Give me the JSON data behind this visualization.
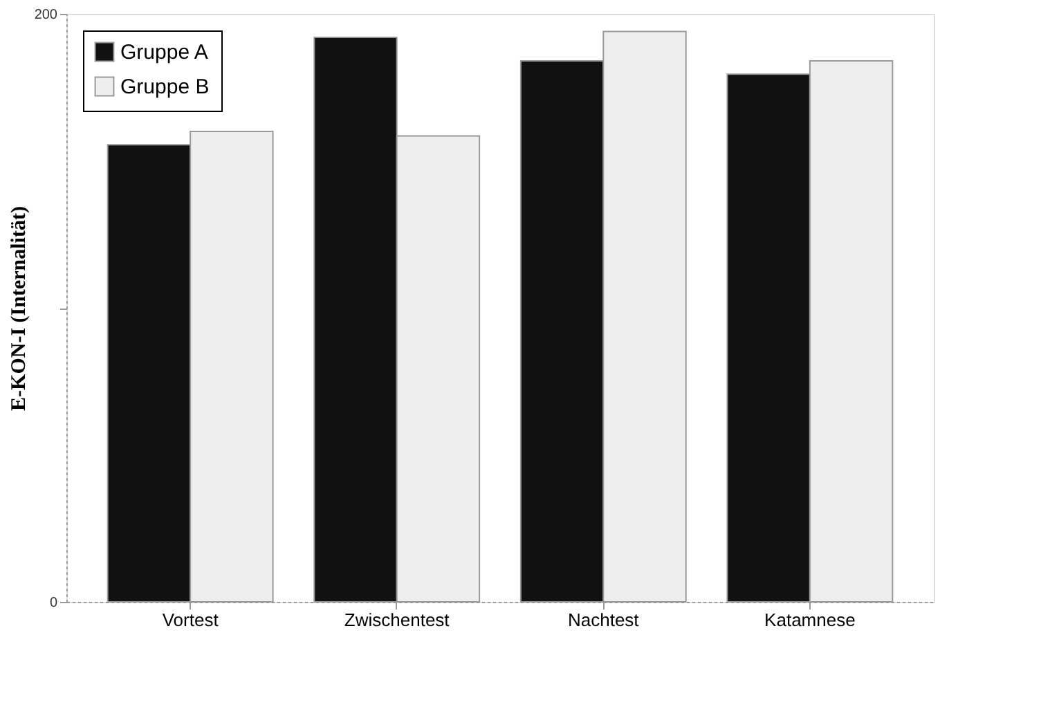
{
  "chart_data": {
    "type": "bar",
    "ylabel": "E-KON-I  (Internalität)",
    "categories": [
      "Vortest",
      "Zwischentest",
      "Nachtest",
      "Katamnese"
    ],
    "series": [
      {
        "name": "Gruppe A",
        "color": "#111111",
        "values": [
          155.5,
          192,
          184,
          179.5
        ]
      },
      {
        "name": "Gruppe B",
        "color": "#eeeeee",
        "values": [
          160,
          158.5,
          194,
          184
        ]
      }
    ],
    "ylim": [
      0,
      200
    ],
    "yticks": [
      0,
      {
        "value": 100,
        "label": null
      },
      200
    ],
    "grid": false,
    "legend": "top left"
  }
}
